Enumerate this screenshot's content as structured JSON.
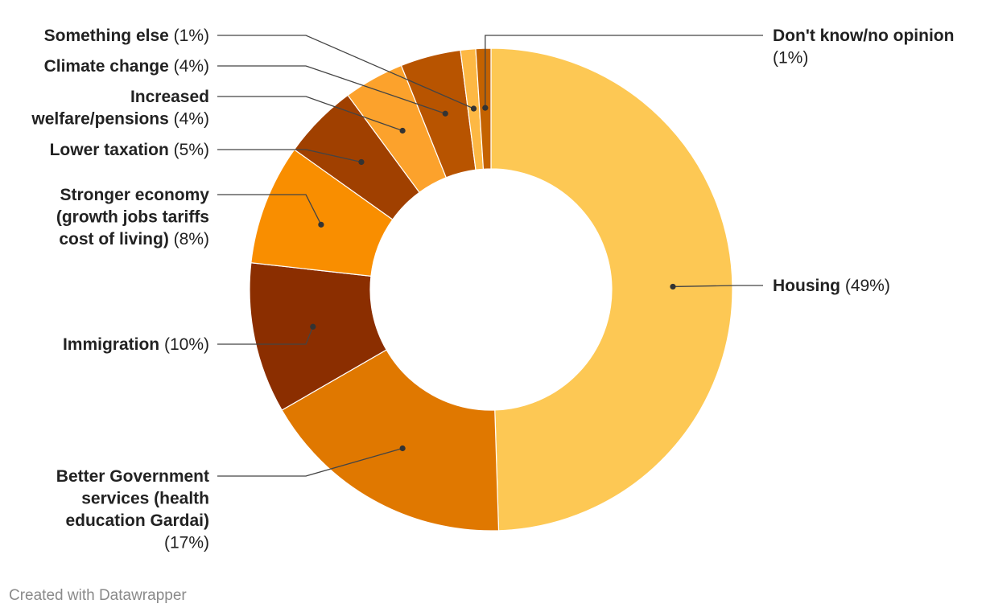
{
  "chart_data": {
    "type": "pie",
    "variant": "donut",
    "slices": [
      {
        "name": "Housing",
        "pct_label": "(49%)",
        "value": 49,
        "color": "#fdc854"
      },
      {
        "name": "Better Government services (health education Gardai)",
        "pct_label": "(17%)",
        "value": 17,
        "color": "#e07800"
      },
      {
        "name": "Immigration",
        "pct_label": "(10%)",
        "value": 10,
        "color": "#8b2e00"
      },
      {
        "name": "Stronger economy (growth jobs tariffs cost of living)",
        "pct_label": "(8%)",
        "value": 8,
        "color": "#f98e00"
      },
      {
        "name": "Lower taxation",
        "pct_label": "(5%)",
        "value": 5,
        "color": "#a04000"
      },
      {
        "name": "Increased welfare/pensions",
        "pct_label": "(4%)",
        "value": 4,
        "color": "#fca22c"
      },
      {
        "name": "Climate change",
        "pct_label": "(4%)",
        "value": 4,
        "color": "#b85400"
      },
      {
        "name": "Something else",
        "pct_label": "(1%)",
        "value": 1,
        "color": "#fdb844"
      },
      {
        "name": "Don't know/no opinion",
        "pct_label": "(1%)",
        "value": 1,
        "color": "#c46200"
      }
    ],
    "label_lines": [
      [
        "Housing (49%)"
      ],
      [
        "Better Government",
        "services (health",
        "education Gardai)",
        "(17%)"
      ],
      [
        "Immigration (10%)"
      ],
      [
        "Stronger economy",
        "(growth jobs tariffs",
        "cost of living) (8%)"
      ],
      [
        "Lower taxation (5%)"
      ],
      [
        "Increased",
        "welfare/pensions (4%)"
      ],
      [
        "Climate change (4%)"
      ],
      [
        "Something else (1%)"
      ],
      [
        "Don't know/no opinion",
        "(1%)"
      ]
    ]
  },
  "footer": {
    "credit": "Created with Datawrapper"
  }
}
